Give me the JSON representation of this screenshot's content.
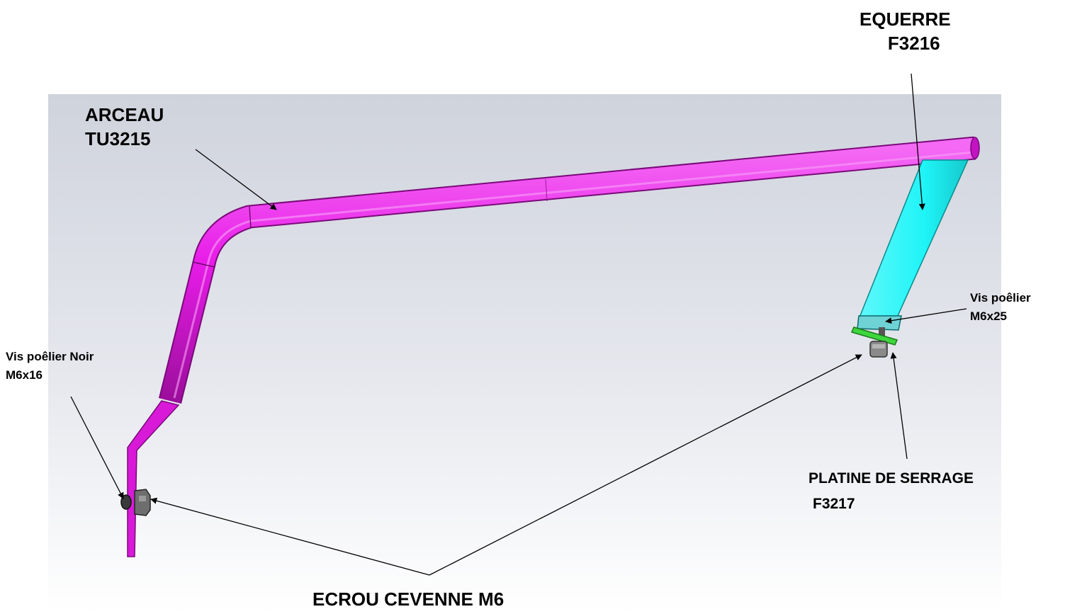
{
  "labels": {
    "equerre": {
      "name": "EQUERRE",
      "ref": "F3216"
    },
    "arceau": {
      "name": "ARCEAU",
      "ref": "TU3215"
    },
    "vis_noir": {
      "name": "Vis poêlier Noir",
      "ref": "M6x16"
    },
    "vis_right": {
      "name": "Vis poêlier",
      "ref": "M6x25"
    },
    "platine": {
      "name": "PLATINE DE SERRAGE",
      "ref": "F3217"
    },
    "ecrou": {
      "name": "ECROU CEVENNE M6"
    }
  },
  "colors": {
    "arceau": "#e81ce8",
    "equerre": "#1ff4f7",
    "platine": "#3dd63d",
    "hardware": "#6e6e6e",
    "background_top": "#cfd3dc",
    "background_bottom": "#ffffff"
  }
}
